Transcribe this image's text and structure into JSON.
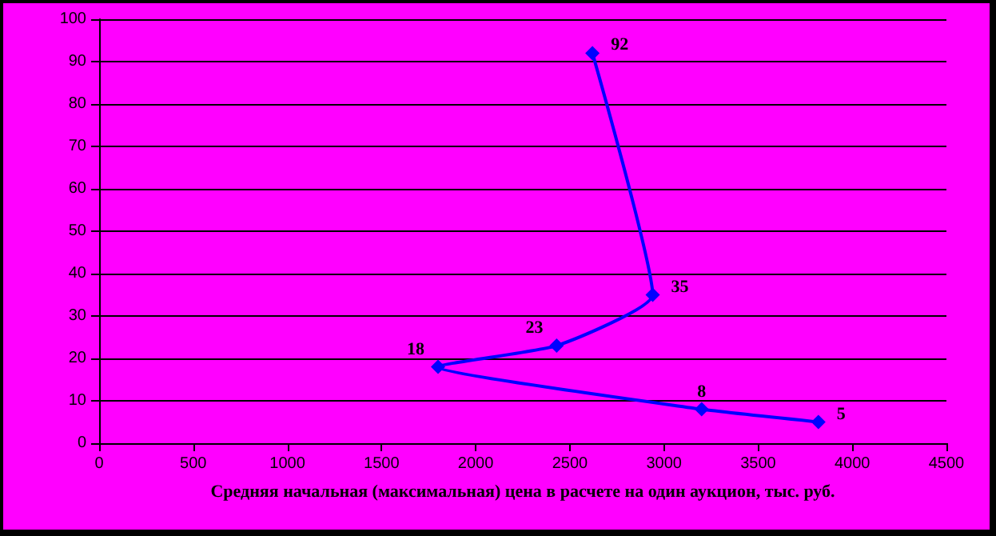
{
  "chart_data": {
    "type": "line",
    "xlabel": "Средняя начальная (максимальная) цена в расчете на один аукцион, тыс. руб.",
    "x": [
      2620,
      2940,
      2430,
      1800,
      3200,
      3820
    ],
    "series": [
      {
        "color": "#0000ff",
        "values": [
          92,
          35,
          23,
          18,
          8,
          5
        ]
      }
    ],
    "xlim": [
      0,
      4500
    ],
    "xticks": [
      0,
      500,
      1000,
      1500,
      2000,
      2500,
      3000,
      3500,
      4000,
      4500
    ],
    "ylim": [
      0,
      100
    ],
    "yticks": [
      0,
      10,
      20,
      30,
      40,
      50,
      60,
      70,
      80,
      90,
      100
    ],
    "grid": "y",
    "marker": "diamond",
    "line_style": "solid",
    "data_labels": true
  }
}
